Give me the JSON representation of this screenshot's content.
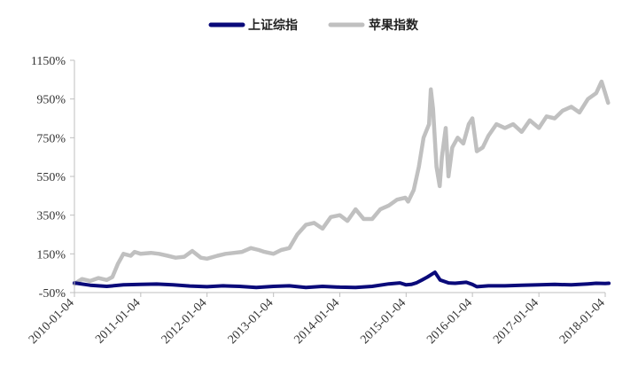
{
  "chart_data": {
    "type": "line",
    "xlabel": "",
    "ylabel": "",
    "grid": false,
    "legend_position": "top-center",
    "ylim": [
      -50,
      1150
    ],
    "y_ticks": [
      -50,
      150,
      350,
      550,
      750,
      950,
      1150
    ],
    "y_tick_labels": [
      "-50%",
      "150%",
      "350%",
      "550%",
      "750%",
      "950%",
      "1150%"
    ],
    "x_ticks": [
      "2010-01-04",
      "2011-01-04",
      "2012-01-04",
      "2013-01-04",
      "2014-01-04",
      "2015-01-04",
      "2016-01-04",
      "2017-01-04",
      "2018-01-04"
    ],
    "series": [
      {
        "name": "上证综指",
        "color": "#0a0a7a",
        "x": [
          "2010-01-04",
          "2010-04-01",
          "2010-07-01",
          "2010-10-01",
          "2011-01-04",
          "2011-04-01",
          "2011-07-01",
          "2011-10-01",
          "2012-01-04",
          "2012-04-01",
          "2012-07-01",
          "2012-10-01",
          "2013-01-04",
          "2013-04-01",
          "2013-07-01",
          "2013-10-01",
          "2014-01-04",
          "2014-04-01",
          "2014-07-01",
          "2014-10-01",
          "2014-12-01",
          "2015-01-04",
          "2015-02-01",
          "2015-03-01",
          "2015-04-01",
          "2015-05-01",
          "2015-06-12",
          "2015-07-10",
          "2015-08-26",
          "2015-10-01",
          "2015-12-01",
          "2016-01-04",
          "2016-01-28",
          "2016-04-01",
          "2016-07-01",
          "2016-10-01",
          "2017-01-04",
          "2017-04-01",
          "2017-07-01",
          "2017-10-01",
          "2017-11-15",
          "2018-01-04",
          "2018-01-24"
        ],
        "values": [
          0,
          -12,
          -18,
          -10,
          -8,
          -6,
          -10,
          -16,
          -20,
          -15,
          -18,
          -24,
          -18,
          -15,
          -24,
          -18,
          -22,
          -24,
          -18,
          -5,
          0,
          -10,
          -8,
          0,
          15,
          30,
          55,
          15,
          0,
          -2,
          3,
          -8,
          -20,
          -15,
          -15,
          -12,
          -10,
          -8,
          -10,
          -5,
          -2,
          -3,
          -2
        ]
      },
      {
        "name": "苹果指数",
        "color": "#c0c0c0",
        "x": [
          "2010-01-04",
          "2010-02-15",
          "2010-04-01",
          "2010-05-15",
          "2010-07-01",
          "2010-08-01",
          "2010-09-01",
          "2010-10-01",
          "2010-11-10",
          "2010-12-01",
          "2011-01-04",
          "2011-03-01",
          "2011-04-15",
          "2011-06-01",
          "2011-07-15",
          "2011-09-01",
          "2011-10-15",
          "2011-12-01",
          "2012-01-04",
          "2012-03-01",
          "2012-04-15",
          "2012-06-01",
          "2012-07-15",
          "2012-09-01",
          "2012-10-15",
          "2012-11-15",
          "2013-01-04",
          "2013-02-15",
          "2013-04-01",
          "2013-05-15",
          "2013-07-01",
          "2013-08-15",
          "2013-10-01",
          "2013-11-15",
          "2014-01-04",
          "2014-02-15",
          "2014-04-01",
          "2014-05-15",
          "2014-07-01",
          "2014-08-15",
          "2014-10-01",
          "2014-11-15",
          "2014-12-31",
          "2015-01-15",
          "2015-02-15",
          "2015-03-15",
          "2015-04-10",
          "2015-05-10",
          "2015-05-20",
          "2015-06-01",
          "2015-06-20",
          "2015-07-08",
          "2015-07-20",
          "2015-08-10",
          "2015-08-25",
          "2015-09-15",
          "2015-10-15",
          "2015-11-15",
          "2015-12-15",
          "2016-01-04",
          "2016-01-28",
          "2016-03-01",
          "2016-04-01",
          "2016-05-15",
          "2016-07-01",
          "2016-08-15",
          "2016-10-01",
          "2016-11-15",
          "2017-01-04",
          "2017-02-15",
          "2017-04-01",
          "2017-05-15",
          "2017-07-01",
          "2017-08-15",
          "2017-10-01",
          "2017-11-15",
          "2017-12-15",
          "2018-01-04",
          "2018-01-20"
        ],
        "values": [
          -5,
          20,
          10,
          25,
          15,
          30,
          100,
          150,
          140,
          160,
          150,
          155,
          150,
          140,
          130,
          135,
          165,
          130,
          125,
          140,
          150,
          155,
          160,
          180,
          170,
          160,
          150,
          170,
          180,
          250,
          300,
          310,
          280,
          340,
          350,
          320,
          380,
          330,
          330,
          380,
          400,
          430,
          440,
          420,
          480,
          600,
          750,
          820,
          1000,
          900,
          600,
          500,
          650,
          800,
          550,
          700,
          750,
          720,
          820,
          850,
          680,
          700,
          760,
          820,
          800,
          820,
          780,
          840,
          800,
          860,
          850,
          890,
          910,
          880,
          950,
          980,
          1040,
          980,
          930
        ]
      }
    ]
  }
}
